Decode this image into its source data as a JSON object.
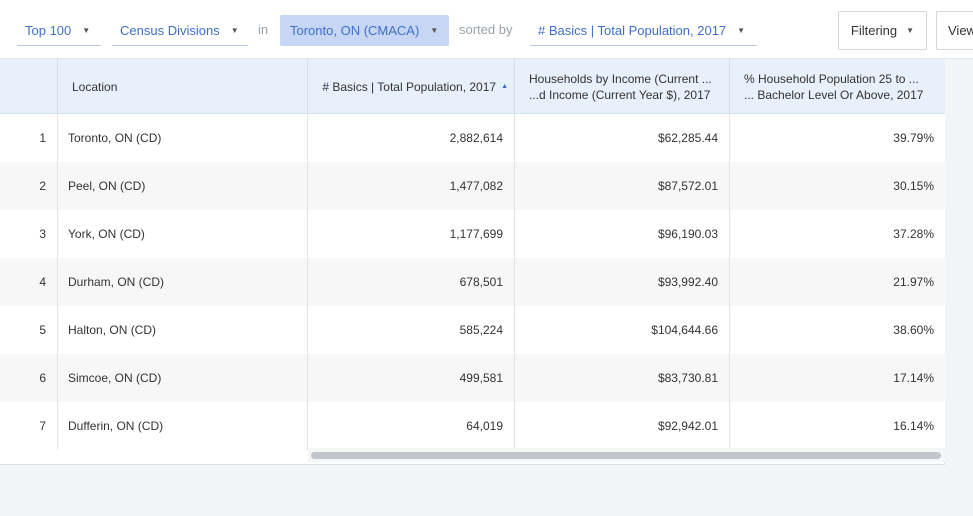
{
  "toolbar": {
    "limit": "Top 100",
    "geography": "Census Divisions",
    "in_label": "in",
    "region": "Toronto, ON (CMACA)",
    "sorted_by_label": "sorted by",
    "sort_field": "# Basics | Total Population, 2017",
    "filter_label": "Filtering",
    "view_label": "View"
  },
  "table": {
    "headers": {
      "location": "Location",
      "population": "# Basics | Total Population, 2017",
      "income_line1": "Households by Income (Current ...",
      "income_line2": "...d Income (Current Year $), 2017",
      "bachelor_line1": "% Household Population 25 to ...",
      "bachelor_line2": "... Bachelor Level Or Above, 2017"
    },
    "rows": [
      {
        "rank": "1",
        "location": "Toronto, ON (CD)",
        "population": "2,882,614",
        "income": "$62,285.44",
        "bachelor": "39.79%"
      },
      {
        "rank": "2",
        "location": "Peel, ON (CD)",
        "population": "1,477,082",
        "income": "$87,572.01",
        "bachelor": "30.15%"
      },
      {
        "rank": "3",
        "location": "York, ON (CD)",
        "population": "1,177,699",
        "income": "$96,190.03",
        "bachelor": "37.28%"
      },
      {
        "rank": "4",
        "location": "Durham, ON (CD)",
        "population": "678,501",
        "income": "$93,992.40",
        "bachelor": "21.97%"
      },
      {
        "rank": "5",
        "location": "Halton, ON (CD)",
        "population": "585,224",
        "income": "$104,644.66",
        "bachelor": "38.60%"
      },
      {
        "rank": "6",
        "location": "Simcoe, ON (CD)",
        "population": "499,581",
        "income": "$83,730.81",
        "bachelor": "17.14%"
      },
      {
        "rank": "7",
        "location": "Dufferin, ON (CD)",
        "population": "64,019",
        "income": "$92,942.01",
        "bachelor": "16.14%"
      }
    ]
  },
  "icons": {
    "dropdown": "caret-down-icon",
    "sort_ascending": "sort-ascending-icon"
  },
  "colors": {
    "accent": "#3f6fc8",
    "selected_chip": "#c7d6f4",
    "header_bg": "#e8f0fb"
  }
}
